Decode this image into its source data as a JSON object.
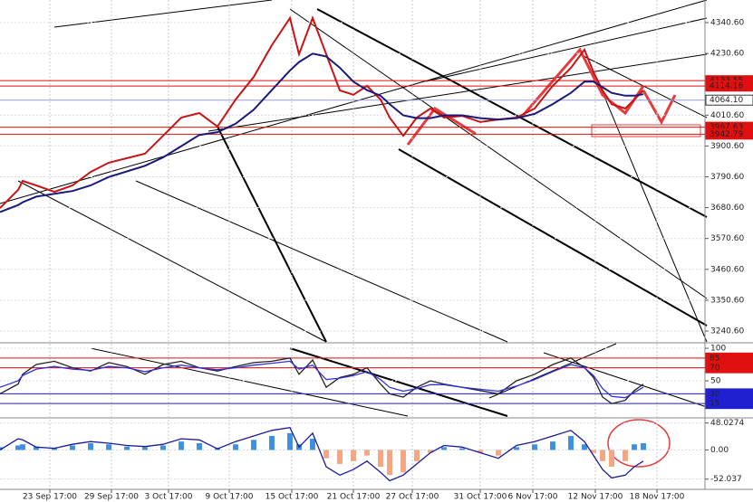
{
  "chart_data": [
    {
      "type": "line",
      "x": [
        0,
        2,
        2.5,
        4,
        6,
        8,
        10,
        12,
        14,
        16,
        18,
        20,
        22,
        24,
        26,
        28,
        30,
        32,
        33,
        34.5,
        36,
        37.5,
        39,
        40.5,
        42,
        43,
        44.5,
        46,
        47.5,
        49,
        51,
        53,
        55,
        57,
        59,
        61,
        63,
        64.5,
        65.5,
        66.5,
        67.5,
        69,
        70,
        71
      ],
      "xlim": [
        0,
        77.8
      ],
      "xticks": [
        {
          "value": 5.5,
          "label": "23 Sep 17:00"
        },
        {
          "value": 12.3,
          "label": "29 Sep 17:00"
        },
        {
          "value": 18.6,
          "label": "3 Oct 17:00"
        },
        {
          "value": 25.3,
          "label": "9 Oct 17:00"
        },
        {
          "value": 32.2,
          "label": "15 Oct 17:00"
        },
        {
          "value": 39,
          "label": "21 Oct 17:00"
        },
        {
          "value": 45.5,
          "label": "27 Oct 17:00"
        },
        {
          "value": 53,
          "label": "31 Oct 17:00"
        },
        {
          "value": 58.8,
          "label": "6 Nov 17:00"
        },
        {
          "value": 65.7,
          "label": "12 Nov 17:00"
        },
        {
          "value": 72.5,
          "label": "18 Nov 17:00"
        }
      ],
      "ylim": [
        3201.9,
        4421.2
      ],
      "yticks": [
        {
          "value": 4340.6,
          "label": "4340.60"
        },
        {
          "value": 4230.6,
          "label": "4230.60"
        },
        {
          "value": 4010.6,
          "label": "4010.60"
        },
        {
          "value": 3900.6,
          "label": "3900.60"
        },
        {
          "value": 3790.6,
          "label": "3790.60"
        },
        {
          "value": 3680.6,
          "label": "3680.60"
        },
        {
          "value": 3570.6,
          "label": "3570.60"
        },
        {
          "value": 3460.6,
          "label": "3460.60"
        },
        {
          "value": 3350.6,
          "label": "3350.60"
        },
        {
          "value": 3240.6,
          "label": "3240.60"
        }
      ],
      "levels": [
        {
          "value": 4133.55,
          "color": "#e01010"
        },
        {
          "value": 4114.16,
          "color": "#e01010"
        },
        {
          "value": 4064.1,
          "label": "4064.10",
          "color": "#9a9ae0"
        },
        {
          "value": 3967.63,
          "color": "#e01010"
        },
        {
          "value": 3942.79,
          "color": "#e01010"
        }
      ],
      "series": [
        {
          "color": "#c81414",
          "values": [
            3679,
            3744,
            3776,
            3760,
            3737,
            3760,
            3808,
            3841,
            3857,
            3873,
            3937,
            4002,
            4018,
            3970,
            4066,
            4147,
            4260,
            4357,
            4228,
            4357,
            4228,
            4099,
            4083,
            4115,
            4066,
            4002,
            3937,
            4002,
            4034,
            4002,
            4008,
            3986,
            3995,
            4002,
            4034,
            4115,
            4179,
            4244,
            4163,
            4099,
            4050,
            4034,
            4066,
            4099
          ]
        },
        {
          "color": "#1a1a7a",
          "values": [
            3665,
            3690,
            3700,
            3720,
            3730,
            3740,
            3760,
            3790,
            3810,
            3830,
            3860,
            3900,
            3940,
            3950,
            3980,
            4030,
            4100,
            4170,
            4200,
            4230,
            4220,
            4180,
            4130,
            4100,
            4080,
            4050,
            4010,
            4000,
            4000,
            4010,
            4010,
            4000,
            3995,
            4000,
            4015,
            4050,
            4090,
            4130,
            4130,
            4110,
            4090,
            4080,
            4080,
            4085
          ]
        }
      ]
    },
    {
      "type": "line",
      "ylim": [
        -7,
        107
      ],
      "yticks": [
        100,
        {
          "value": 85,
          "label": "85.0000"
        },
        {
          "value": 70,
          "label": "70.0000"
        },
        50,
        {
          "value": 30,
          "label": "30.0000"
        },
        {
          "value": 15,
          "label": "15.0000"
        }
      ],
      "levels": [
        {
          "value": 85,
          "color": "#e01010"
        },
        {
          "value": 70,
          "color": "#e01010"
        },
        {
          "value": 30,
          "color": "#2020d0"
        },
        {
          "value": 15,
          "color": "#2020d0"
        }
      ],
      "series": [
        {
          "color": "#222222",
          "values": [
            30,
            45,
            60,
            75,
            80,
            70,
            65,
            78,
            72,
            60,
            75,
            80,
            70,
            65,
            72,
            78,
            80,
            85,
            60,
            82,
            40,
            55,
            60,
            70,
            45,
            30,
            25,
            40,
            50,
            45,
            40,
            35,
            30,
            50,
            60,
            75,
            85,
            70,
            55,
            25,
            15,
            20,
            35,
            45
          ]
        },
        {
          "color": "#3030e0",
          "values": [
            40,
            50,
            58,
            68,
            72,
            68,
            66,
            72,
            70,
            64,
            70,
            74,
            70,
            67,
            70,
            74,
            77,
            80,
            68,
            74,
            52,
            54,
            58,
            64,
            52,
            40,
            34,
            38,
            44,
            44,
            40,
            37,
            34,
            42,
            52,
            64,
            75,
            70,
            58,
            38,
            26,
            24,
            32,
            40
          ]
        }
      ]
    },
    {
      "type": "combo",
      "ylim": [
        -68.7,
        55.6
      ],
      "yticks": [
        48.0274,
        {
          "value": 0,
          "label": "0.00"
        },
        -52.037
      ],
      "series": [
        {
          "type": "bar",
          "color": "#3d8fe0",
          "negative_color": "#f4a582",
          "values": [
            5,
            8,
            10,
            6,
            4,
            8,
            12,
            10,
            6,
            5,
            8,
            15,
            12,
            4,
            10,
            18,
            25,
            30,
            10,
            20,
            -15,
            -25,
            -20,
            -10,
            -30,
            -45,
            -40,
            -20,
            -5,
            5,
            3,
            -5,
            -10,
            5,
            10,
            15,
            25,
            10,
            -5,
            -20,
            -30,
            -20,
            10,
            12
          ]
        },
        {
          "type": "line",
          "color": "#1a1a9a",
          "values": [
            0,
            20,
            18,
            5,
            3,
            10,
            15,
            12,
            8,
            6,
            10,
            20,
            18,
            2,
            15,
            25,
            35,
            40,
            5,
            30,
            -30,
            -45,
            -35,
            -20,
            -40,
            -55,
            -45,
            -25,
            -5,
            8,
            5,
            -5,
            -15,
            8,
            15,
            25,
            35,
            15,
            -10,
            -35,
            -50,
            -45,
            -30,
            -20
          ]
        }
      ]
    }
  ]
}
